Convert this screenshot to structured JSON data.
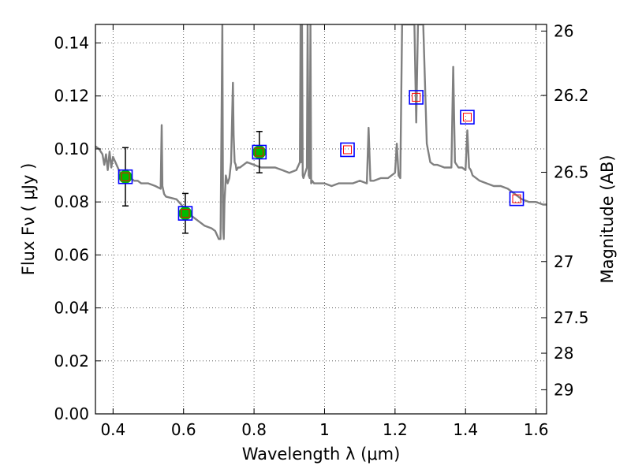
{
  "chart_data": {
    "type": "line",
    "xlabel": "Wavelength  λ (μm)",
    "ylabel": "Flux  Fν  ( μJy )",
    "y2label": "Magnitude (AB)",
    "xlim": [
      0.35,
      1.63
    ],
    "ylim": [
      0.0,
      0.147
    ],
    "grid": true,
    "x_ticks": [
      0.4,
      0.6,
      0.8,
      1.0,
      1.2,
      1.4,
      1.6
    ],
    "x_tick_labels": [
      "0.4",
      "0.6",
      "0.8",
      "1",
      "1.2",
      "1.4",
      "1.6"
    ],
    "y_ticks": [
      0.0,
      0.02,
      0.04,
      0.06,
      0.08,
      0.1,
      0.12,
      0.14
    ],
    "y_tick_labels": [
      "0.00",
      "0.02",
      "0.04",
      "0.06",
      "0.08",
      "0.10",
      "0.12",
      "0.14"
    ],
    "y2_ticks": [
      {
        "label": "26",
        "flux": 0.1445
      },
      {
        "label": "26.2",
        "flux": 0.1202
      },
      {
        "label": "26.5",
        "flux": 0.0912
      },
      {
        "label": "27",
        "flux": 0.0575
      },
      {
        "label": "27.5",
        "flux": 0.0363
      },
      {
        "label": "28",
        "flux": 0.0229
      },
      {
        "label": "29",
        "flux": 0.0091
      }
    ],
    "colors": {
      "sed": "#808080",
      "detection_fill": "#00bb00",
      "box": "#0000ff",
      "model_marker": "#ff0000",
      "errorbar": "#000000"
    },
    "series": [
      {
        "kind": "sed_model",
        "x": [
          0.35,
          0.36,
          0.37,
          0.375,
          0.38,
          0.385,
          0.39,
          0.395,
          0.4,
          0.41,
          0.42,
          0.43,
          0.44,
          0.45,
          0.46,
          0.47,
          0.48,
          0.5,
          0.52,
          0.535,
          0.538,
          0.54,
          0.545,
          0.55,
          0.58,
          0.6,
          0.62,
          0.64,
          0.66,
          0.68,
          0.69,
          0.7,
          0.705,
          0.71,
          0.712,
          0.714,
          0.716,
          0.718,
          0.72,
          0.725,
          0.73,
          0.735,
          0.74,
          0.742,
          0.745,
          0.748,
          0.75,
          0.755,
          0.76,
          0.78,
          0.8,
          0.82,
          0.84,
          0.86,
          0.88,
          0.9,
          0.92,
          0.93,
          0.932,
          0.934,
          0.936,
          0.938,
          0.94,
          0.95,
          0.952,
          0.955,
          0.958,
          0.96,
          0.962,
          0.965,
          0.97,
          1.0,
          1.02,
          1.04,
          1.06,
          1.08,
          1.1,
          1.12,
          1.125,
          1.13,
          1.14,
          1.16,
          1.18,
          1.2,
          1.205,
          1.21,
          1.215,
          1.22,
          1.24,
          1.25,
          1.255,
          1.26,
          1.265,
          1.27,
          1.28,
          1.29,
          1.3,
          1.31,
          1.32,
          1.34,
          1.36,
          1.365,
          1.37,
          1.375,
          1.38,
          1.39,
          1.4,
          1.405,
          1.41,
          1.415,
          1.42,
          1.44,
          1.46,
          1.48,
          1.5,
          1.52,
          1.54,
          1.56,
          1.58,
          1.6,
          1.62,
          1.63
        ],
        "y": [
          0.101,
          0.1,
          0.098,
          0.094,
          0.098,
          0.092,
          0.099,
          0.093,
          0.097,
          0.094,
          0.091,
          0.09,
          0.092,
          0.089,
          0.088,
          0.088,
          0.087,
          0.087,
          0.086,
          0.085,
          0.109,
          0.086,
          0.083,
          0.082,
          0.081,
          0.078,
          0.075,
          0.073,
          0.071,
          0.07,
          0.069,
          0.066,
          0.066,
          0.147,
          0.07,
          0.066,
          0.08,
          0.085,
          0.09,
          0.087,
          0.089,
          0.095,
          0.125,
          0.105,
          0.095,
          0.094,
          0.092,
          0.093,
          0.093,
          0.095,
          0.094,
          0.093,
          0.093,
          0.093,
          0.092,
          0.091,
          0.092,
          0.095,
          0.147,
          0.095,
          0.147,
          0.09,
          0.089,
          0.093,
          0.147,
          0.09,
          0.089,
          0.147,
          0.087,
          0.088,
          0.087,
          0.087,
          0.086,
          0.087,
          0.087,
          0.087,
          0.088,
          0.087,
          0.108,
          0.088,
          0.088,
          0.089,
          0.089,
          0.091,
          0.102,
          0.09,
          0.089,
          0.147,
          0.147,
          0.147,
          0.147,
          0.11,
          0.147,
          0.147,
          0.147,
          0.102,
          0.095,
          0.094,
          0.094,
          0.093,
          0.093,
          0.131,
          0.095,
          0.094,
          0.093,
          0.093,
          0.092,
          0.107,
          0.093,
          0.092,
          0.09,
          0.088,
          0.087,
          0.086,
          0.086,
          0.085,
          0.083,
          0.081,
          0.08,
          0.08,
          0.079,
          0.079
        ]
      },
      {
        "kind": "photometry_detections",
        "x": [
          0.435,
          0.605,
          0.815
        ],
        "y": [
          0.0895,
          0.0757,
          0.0988
        ],
        "yerr": [
          0.011,
          0.0075,
          0.0078
        ]
      },
      {
        "kind": "model_photometry_boxes",
        "x": [
          0.435,
          0.605,
          0.815,
          1.065,
          1.26,
          1.405,
          1.545
        ],
        "y": [
          0.0895,
          0.0757,
          0.0988,
          0.0997,
          0.1195,
          0.112,
          0.0812
        ]
      }
    ]
  }
}
